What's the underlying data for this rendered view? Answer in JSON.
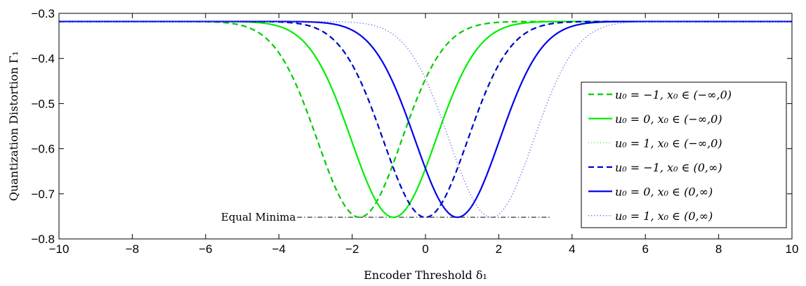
{
  "chart_data": {
    "type": "line",
    "xlabel": "Encoder Threshold δ₁",
    "ylabel": "Quantization Distortion Γ₁",
    "xlim": [
      -10,
      10
    ],
    "ylim": [
      -0.8,
      -0.3
    ],
    "xticks": [
      "−10",
      "−8",
      "−6",
      "−4",
      "−2",
      "0",
      "2",
      "4",
      "6",
      "8",
      "10"
    ],
    "yticks": [
      "−0.3",
      "−0.4",
      "−0.5",
      "−0.6",
      "−0.7",
      "−0.8"
    ],
    "grid": false,
    "legend_position": "right",
    "series": [
      {
        "name": "u₀ = −1, x₀ ∈ (−∞,0)",
        "color": "#00cc00",
        "style": "dashed",
        "center": -1.8,
        "min": -0.752,
        "plateau": -0.318
      },
      {
        "name": "u₀ = 0, x₀ ∈ (−∞,0)",
        "color": "#00ee00",
        "style": "solid",
        "center": -0.87,
        "min": -0.752,
        "plateau": -0.318
      },
      {
        "name": "u₀ = 1, x₀ ∈ (−∞,0)",
        "color": "#66ee66",
        "style": "dotted",
        "center": 0.0,
        "min": -0.752,
        "plateau": -0.318
      },
      {
        "name": "u₀ = −1, x₀ ∈ (0,∞)",
        "color": "#0000cc",
        "style": "dashed",
        "center": 0.0,
        "min": -0.752,
        "plateau": -0.318
      },
      {
        "name": "u₀ = 0, x₀ ∈ (0,∞)",
        "color": "#0000ee",
        "style": "solid",
        "center": 0.87,
        "min": -0.752,
        "plateau": -0.318
      },
      {
        "name": "u₀ = 1, x₀ ∈ (0,∞)",
        "color": "#6666ee",
        "style": "dotted",
        "center": 1.8,
        "min": -0.752,
        "plateau": -0.318
      }
    ],
    "annotation": {
      "text": "Equal Minima",
      "x_start": -3.5,
      "x_end": 3.4,
      "y": -0.752
    }
  }
}
